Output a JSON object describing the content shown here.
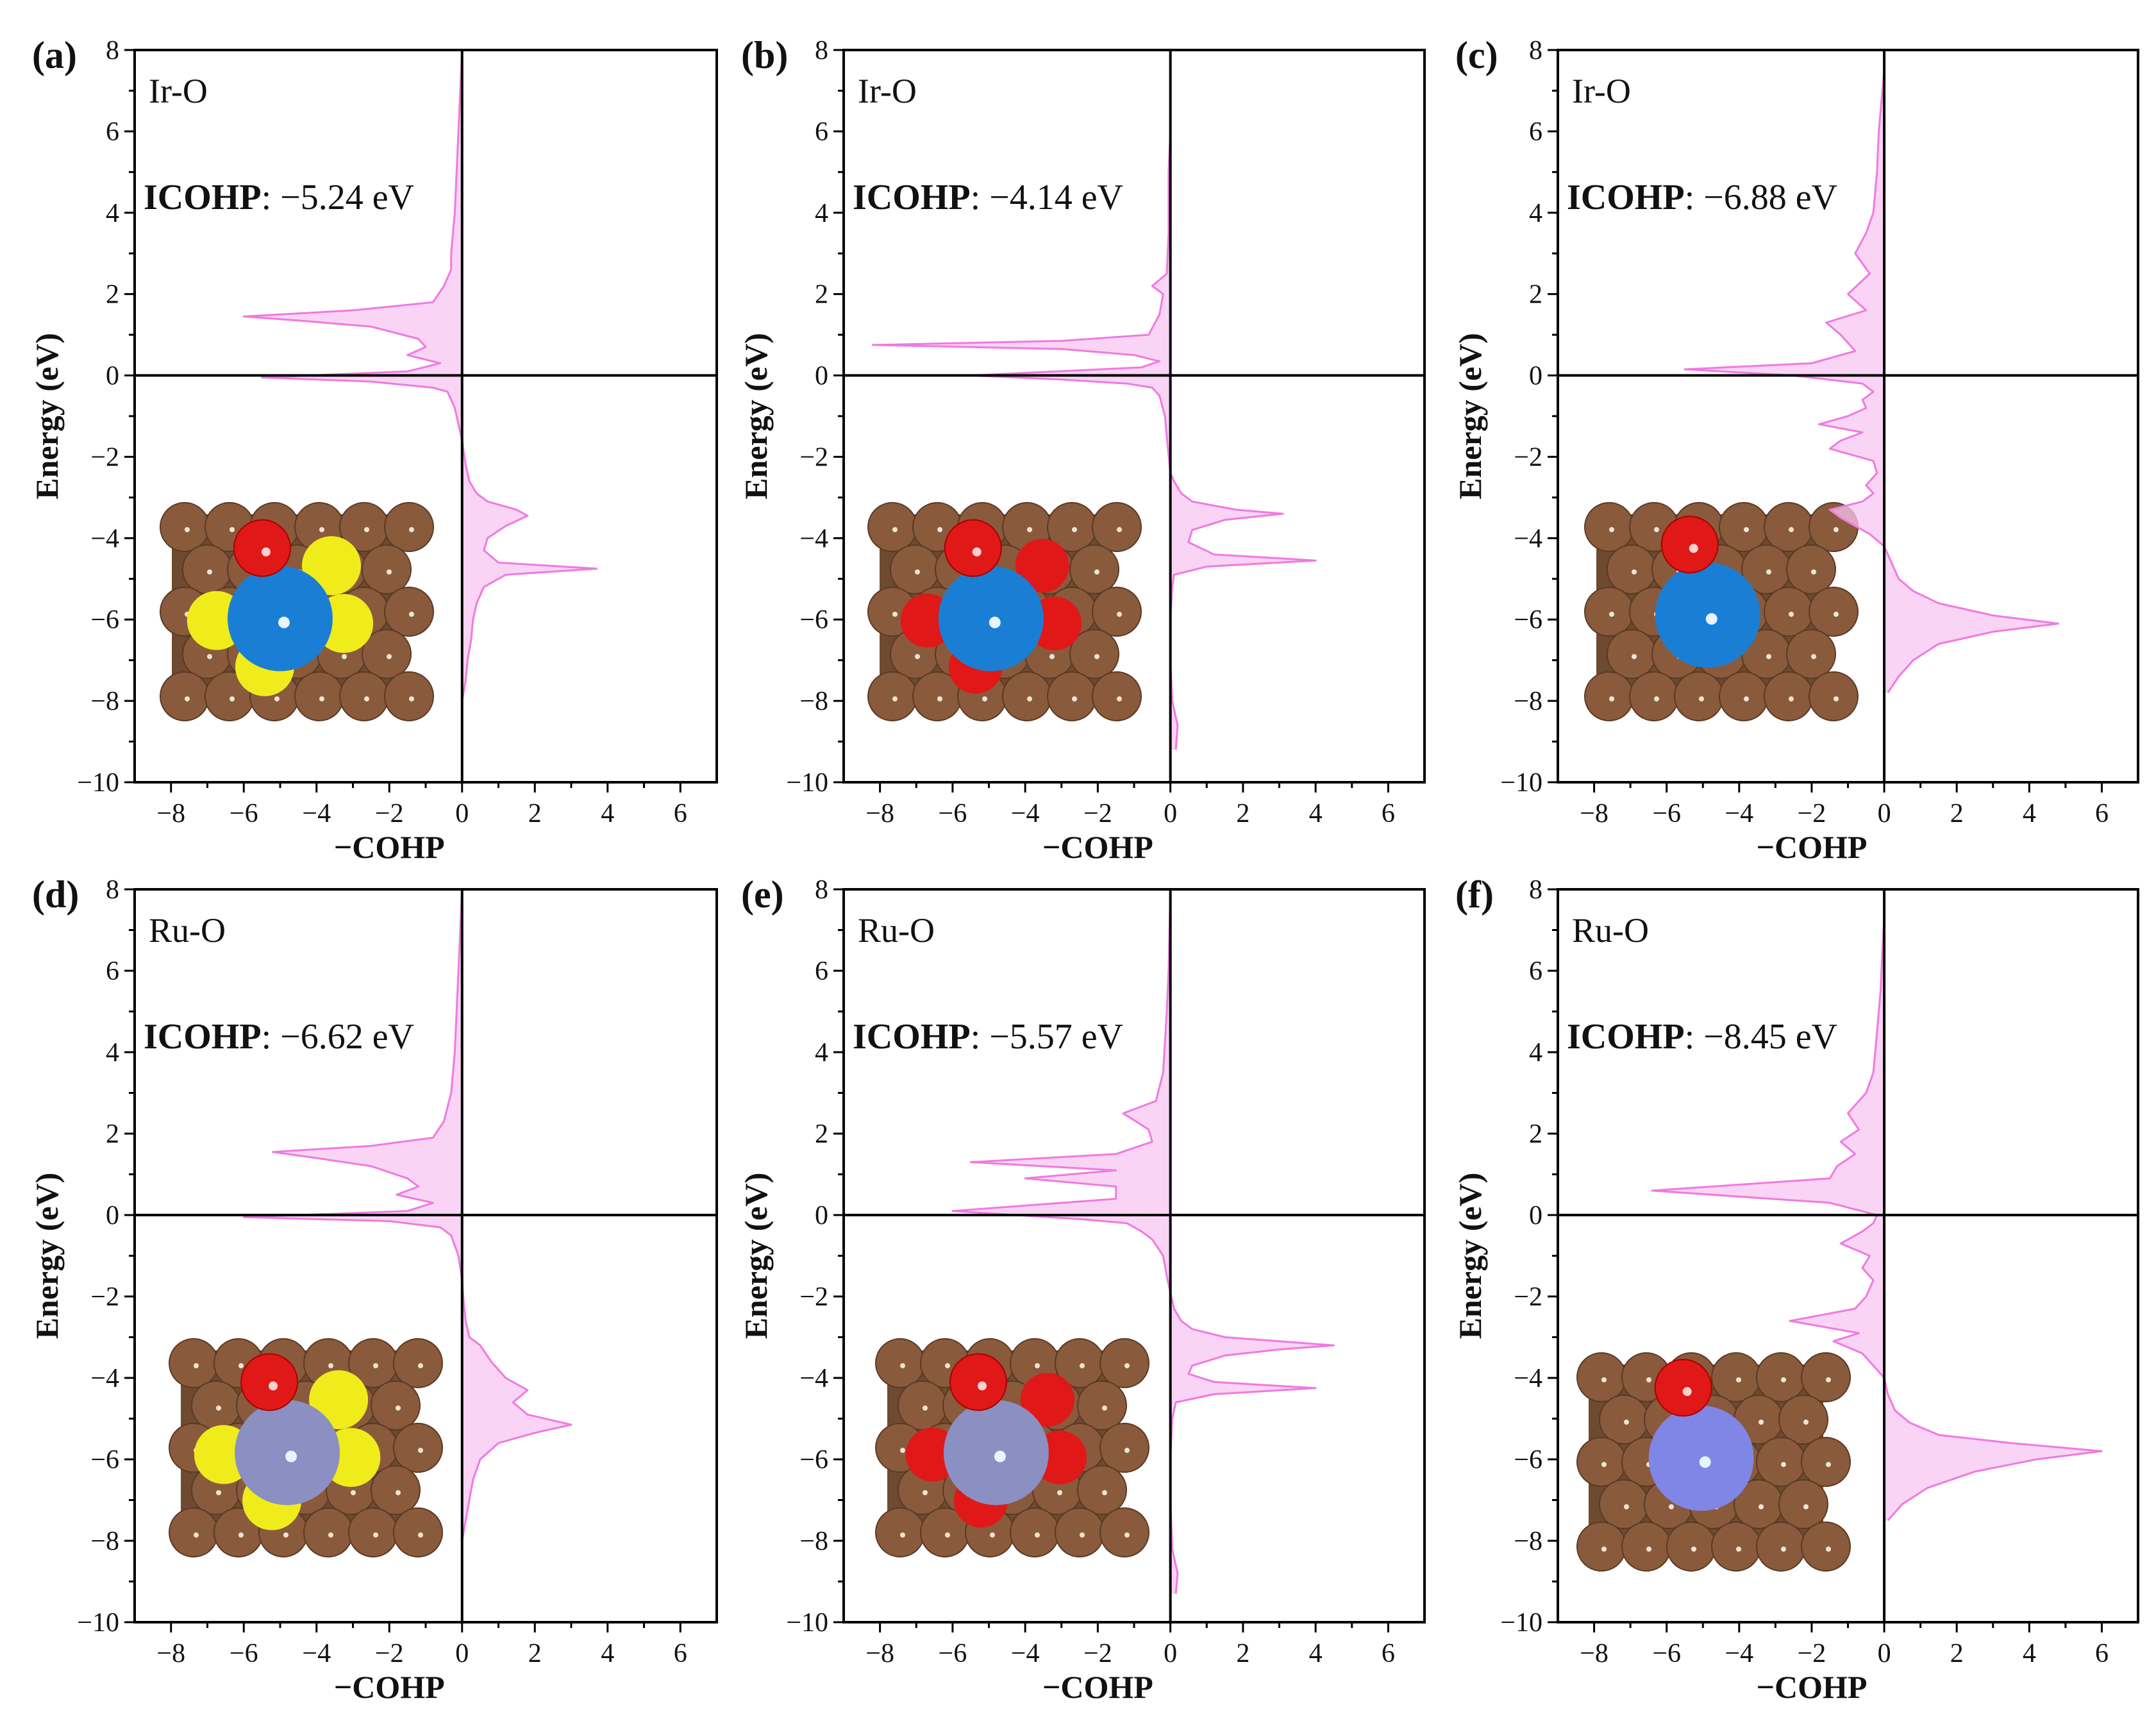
{
  "figure": {
    "xlabel": "−COHP",
    "ylabel": "Energy (eV)",
    "colors": {
      "curve": "#f07ae0",
      "fill": "#f7c6f0",
      "axis": "#000000",
      "Ir": "#1a7fd4",
      "Ru": "#8c8fc2",
      "Ru_f": "#7f86e6",
      "O": "#e01818",
      "S": "#f0ec1c",
      "C": "#8a5a3c"
    }
  },
  "chart_data": [
    {
      "id": "a",
      "panel_label": "(a)",
      "type": "line",
      "bond": "Ir-O",
      "icohp_label": "ICOHP",
      "icohp_value": ": −5.24 eV",
      "xlabel": "−COHP",
      "ylabel": "Energy (eV)",
      "xlim": [
        -9,
        7
      ],
      "ylim": [
        -10,
        8
      ],
      "xticks": [
        -8,
        -6,
        -4,
        -2,
        0,
        2,
        4,
        6
      ],
      "yticks": [
        -10,
        -8,
        -6,
        -4,
        -2,
        0,
        2,
        4,
        6,
        8
      ],
      "xtick_labels": [
        "−8",
        "−6",
        "−4",
        "−2",
        "0",
        "2",
        "4",
        "6"
      ],
      "ytick_labels": [
        "−10",
        "−8",
        "−6",
        "−4",
        "−2",
        "0",
        "2",
        "4",
        "6",
        "8"
      ],
      "inset": {
        "metal": "Ir",
        "ligand": "S"
      },
      "series": [
        {
          "name": "-COHP",
          "y": [
            -8,
            -7.5,
            -7,
            -6.5,
            -6,
            -5.6,
            -5.2,
            -4.9,
            -4.75,
            -4.6,
            -4.3,
            -4,
            -3.7,
            -3.45,
            -3.3,
            -3.1,
            -2.9,
            -2.6,
            -2.2,
            -1.6,
            -1.2,
            -0.8,
            -0.4,
            -0.3,
            -0.15,
            -0.05,
            0.1,
            0.3,
            0.5,
            0.7,
            0.9,
            1.2,
            1.35,
            1.45,
            1.6,
            1.8,
            2.2,
            2.6,
            3,
            4,
            5,
            6,
            7,
            8
          ],
          "x": [
            0,
            0.1,
            0.15,
            0.25,
            0.3,
            0.4,
            0.6,
            1.2,
            3.7,
            1,
            0.6,
            0.7,
            1.2,
            1.8,
            1.5,
            0.7,
            0.4,
            0.2,
            0.1,
            0,
            -0.1,
            -0.2,
            -0.4,
            -0.8,
            -2.5,
            -5.5,
            -1.5,
            -0.6,
            -1.5,
            -1,
            -1.2,
            -2.5,
            -4.5,
            -6,
            -3,
            -0.8,
            -0.5,
            -0.3,
            -0.3,
            -0.2,
            -0.15,
            -0.1,
            -0.05,
            0
          ]
        }
      ]
    },
    {
      "id": "b",
      "panel_label": "(b)",
      "type": "line",
      "bond": "Ir-O",
      "icohp_label": "ICOHP",
      "icohp_value": ": −4.14 eV",
      "xlabel": "−COHP",
      "ylabel": "Energy (eV)",
      "xlim": [
        -9,
        7
      ],
      "ylim": [
        -10,
        8
      ],
      "xticks": [
        -8,
        -6,
        -4,
        -2,
        0,
        2,
        4,
        6
      ],
      "yticks": [
        -10,
        -8,
        -6,
        -4,
        -2,
        0,
        2,
        4,
        6,
        8
      ],
      "xtick_labels": [
        "−8",
        "−6",
        "−4",
        "−2",
        "0",
        "2",
        "4",
        "6"
      ],
      "ytick_labels": [
        "−10",
        "−8",
        "−6",
        "−4",
        "−2",
        "0",
        "2",
        "4",
        "6",
        "8"
      ],
      "inset": {
        "metal": "Ir",
        "ligand": "O"
      },
      "series": [
        {
          "name": "-COHP",
          "y": [
            -9.2,
            -8.6,
            -8,
            -7,
            -6,
            -5.2,
            -4.9,
            -4.7,
            -4.55,
            -4.4,
            -4.1,
            -3.8,
            -3.55,
            -3.4,
            -3.3,
            -3.1,
            -2.9,
            -2.6,
            -2.4,
            -1.5,
            -1,
            -0.5,
            -0.3,
            -0.2,
            -0.1,
            0,
            0.2,
            0.35,
            0.5,
            0.65,
            0.75,
            0.85,
            1,
            1.5,
            2,
            2.2,
            2.5,
            3.5,
            5,
            6,
            8
          ],
          "x": [
            0.15,
            0.2,
            0.05,
            0,
            0,
            0.05,
            0.1,
            1,
            4,
            1.2,
            0.5,
            0.6,
            1.5,
            3.1,
            1.8,
            0.6,
            0.3,
            0.1,
            0,
            -0.1,
            -0.15,
            -0.3,
            -0.5,
            -1.2,
            -3,
            -5.5,
            -0.8,
            -0.3,
            -1,
            -3,
            -8.2,
            -3,
            -0.6,
            -0.3,
            -0.2,
            -0.5,
            -0.1,
            -0.05,
            -0.05,
            0,
            0
          ]
        }
      ]
    },
    {
      "id": "c",
      "panel_label": "(c)",
      "type": "line",
      "bond": "Ir-O",
      "icohp_label": "ICOHP",
      "icohp_value": ": −6.88 eV",
      "xlabel": "−COHP",
      "ylabel": "Energy (eV)",
      "xlim": [
        -9,
        7
      ],
      "ylim": [
        -10,
        8
      ],
      "xticks": [
        -8,
        -6,
        -4,
        -2,
        0,
        2,
        4,
        6
      ],
      "yticks": [
        -10,
        -8,
        -6,
        -4,
        -2,
        0,
        2,
        4,
        6,
        8
      ],
      "xtick_labels": [
        "−8",
        "−6",
        "−4",
        "−2",
        "0",
        "2",
        "4",
        "6"
      ],
      "ytick_labels": [
        "−10",
        "−8",
        "−6",
        "−4",
        "−2",
        "0",
        "2",
        "4",
        "6",
        "8"
      ],
      "inset": {
        "metal": "Ir",
        "ligand": "none"
      },
      "series": [
        {
          "name": "-COHP",
          "y": [
            -7.8,
            -7.4,
            -7,
            -6.6,
            -6.3,
            -6.1,
            -5.9,
            -5.6,
            -5.3,
            -5,
            -4.6,
            -4.2,
            -3.9,
            -3.7,
            -3.5,
            -3.3,
            -3.1,
            -2.9,
            -2.7,
            -2.4,
            -2.1,
            -1.8,
            -1.6,
            -1.4,
            -1.2,
            -1,
            -0.8,
            -0.6,
            -0.4,
            -0.2,
            0,
            0.15,
            0.3,
            0.6,
            1,
            1.3,
            1.6,
            2,
            2.5,
            3,
            3.5,
            4,
            5,
            6,
            7.5
          ],
          "x": [
            0.1,
            0.4,
            0.8,
            1.5,
            3,
            4.8,
            3,
            1.5,
            0.8,
            0.4,
            0.2,
            0,
            -0.4,
            -0.8,
            -1.2,
            -1.5,
            -0.6,
            -0.3,
            -0.5,
            -0.2,
            -0.3,
            -1.5,
            -1.2,
            -0.6,
            -1.8,
            -1,
            -0.5,
            -0.6,
            -0.3,
            -0.6,
            -2.5,
            -5.5,
            -2,
            -0.8,
            -1.2,
            -1.6,
            -0.5,
            -1,
            -0.4,
            -0.8,
            -0.5,
            -0.3,
            -0.2,
            -0.15,
            0
          ]
        }
      ]
    },
    {
      "id": "d",
      "panel_label": "(d)",
      "type": "line",
      "bond": "Ru-O",
      "icohp_label": "ICOHP",
      "icohp_value": ": −6.62 eV",
      "xlabel": "−COHP",
      "ylabel": "Energy (eV)",
      "xlim": [
        -9,
        7
      ],
      "ylim": [
        -10,
        8
      ],
      "xticks": [
        -8,
        -6,
        -4,
        -2,
        0,
        2,
        4,
        6
      ],
      "yticks": [
        -10,
        -8,
        -6,
        -4,
        -2,
        0,
        2,
        4,
        6,
        8
      ],
      "xtick_labels": [
        "−8",
        "−6",
        "−4",
        "−2",
        "0",
        "2",
        "4",
        "6"
      ],
      "ytick_labels": [
        "−10",
        "−8",
        "−6",
        "−4",
        "−2",
        "0",
        "2",
        "4",
        "6",
        "8"
      ],
      "inset": {
        "metal": "Ru",
        "ligand": "S"
      },
      "series": [
        {
          "name": "-COHP",
          "y": [
            -8,
            -7.5,
            -7,
            -6.5,
            -6,
            -5.6,
            -5.35,
            -5.15,
            -4.9,
            -4.6,
            -4.3,
            -4,
            -3.6,
            -3.2,
            -3,
            -2.6,
            -2.2,
            -1.6,
            -1,
            -0.5,
            -0.3,
            -0.15,
            -0.05,
            0.1,
            0.3,
            0.5,
            0.7,
            0.9,
            1.2,
            1.4,
            1.55,
            1.7,
            1.9,
            2.3,
            3,
            4,
            5,
            6,
            7,
            8
          ],
          "x": [
            0,
            0.1,
            0.2,
            0.3,
            0.5,
            1,
            2,
            3,
            1.8,
            1.4,
            1.8,
            1.2,
            0.8,
            0.5,
            0.2,
            0.1,
            0.05,
            0,
            -0.1,
            -0.3,
            -0.6,
            -2,
            -6,
            -1.5,
            -0.8,
            -1.8,
            -1.2,
            -1.5,
            -2.5,
            -4,
            -5.2,
            -2.5,
            -0.8,
            -0.5,
            -0.3,
            -0.2,
            -0.15,
            -0.1,
            -0.05,
            0
          ]
        }
      ]
    },
    {
      "id": "e",
      "panel_label": "(e)",
      "type": "line",
      "bond": "Ru-O",
      "icohp_label": "ICOHP",
      "icohp_value": ": −5.57 eV",
      "xlabel": "−COHP",
      "ylabel": "Energy (eV)",
      "xlim": [
        -9,
        7
      ],
      "ylim": [
        -10,
        8
      ],
      "xticks": [
        -8,
        -6,
        -4,
        -2,
        0,
        2,
        4,
        6
      ],
      "yticks": [
        -10,
        -8,
        -6,
        -4,
        -2,
        0,
        2,
        4,
        6,
        8
      ],
      "xtick_labels": [
        "−8",
        "−6",
        "−4",
        "−2",
        "0",
        "2",
        "4",
        "6"
      ],
      "ytick_labels": [
        "−10",
        "−8",
        "−6",
        "−4",
        "−2",
        "0",
        "2",
        "4",
        "6",
        "8"
      ],
      "inset": {
        "metal": "Ru",
        "ligand": "O"
      },
      "series": [
        {
          "name": "-COHP",
          "y": [
            -9.3,
            -8.8,
            -8.2,
            -7,
            -6,
            -5,
            -4.6,
            -4.4,
            -4.25,
            -4.1,
            -3.9,
            -3.7,
            -3.45,
            -3.3,
            -3.2,
            -3,
            -2.8,
            -2.6,
            -2.3,
            -1.5,
            -1,
            -0.6,
            -0.4,
            -0.2,
            -0.1,
            0.1,
            0.4,
            0.7,
            0.9,
            1.1,
            1.3,
            1.5,
            1.8,
            2.1,
            2.5,
            2.8,
            3.5,
            5,
            6,
            8
          ],
          "x": [
            0.15,
            0.2,
            0.05,
            0,
            0,
            0.05,
            0.15,
            1.2,
            4,
            1.2,
            0.5,
            0.6,
            1.5,
            3,
            4.5,
            1.5,
            0.6,
            0.3,
            0.1,
            -0.1,
            -0.2,
            -0.5,
            -0.8,
            -1.2,
            -2.5,
            -6,
            -1.5,
            -1.5,
            -4,
            -1.5,
            -5.5,
            -1.5,
            -0.5,
            -0.6,
            -1.3,
            -0.4,
            -0.2,
            -0.1,
            -0.05,
            0
          ]
        }
      ]
    },
    {
      "id": "f",
      "panel_label": "(f)",
      "type": "line",
      "bond": "Ru-O",
      "icohp_label": "ICOHP",
      "icohp_value": ": −8.45 eV",
      "xlabel": "−COHP",
      "ylabel": "Energy (eV)",
      "xlim": [
        -9,
        7
      ],
      "ylim": [
        -10,
        8
      ],
      "xticks": [
        -8,
        -6,
        -4,
        -2,
        0,
        2,
        4,
        6
      ],
      "yticks": [
        -10,
        -8,
        -6,
        -4,
        -2,
        0,
        2,
        4,
        6,
        8
      ],
      "xtick_labels": [
        "−8",
        "−6",
        "−4",
        "−2",
        "0",
        "2",
        "4",
        "6"
      ],
      "ytick_labels": [
        "−10",
        "−8",
        "−6",
        "−4",
        "−2",
        "0",
        "2",
        "4",
        "6",
        "8"
      ],
      "inset": {
        "metal": "Ru",
        "ligand": "none"
      },
      "series": [
        {
          "name": "-COHP",
          "y": [
            -7.5,
            -7.1,
            -6.7,
            -6.3,
            -6,
            -5.8,
            -5.6,
            -5.4,
            -5.1,
            -4.8,
            -4.4,
            -4,
            -3.7,
            -3.4,
            -3.1,
            -2.9,
            -2.6,
            -2.3,
            -2,
            -1.6,
            -1.3,
            -1,
            -0.7,
            -0.4,
            -0.2,
            0,
            0.3,
            0.6,
            0.9,
            1.2,
            1.5,
            1.8,
            2.1,
            2.5,
            3,
            3.5,
            4.5,
            5.5,
            6.5,
            7.3
          ],
          "x": [
            0.1,
            0.5,
            1.2,
            2.5,
            4.2,
            6,
            3.5,
            1.5,
            0.7,
            0.3,
            0.1,
            0,
            -0.3,
            -0.6,
            -1.4,
            -0.7,
            -2.6,
            -0.8,
            -0.5,
            -0.3,
            -0.6,
            -0.4,
            -1.2,
            -0.6,
            -0.3,
            -0.2,
            -1.5,
            -6.4,
            -1.5,
            -1.3,
            -0.8,
            -1.2,
            -0.7,
            -1,
            -0.5,
            -0.3,
            -0.2,
            -0.1,
            -0.05,
            0
          ]
        }
      ]
    }
  ]
}
